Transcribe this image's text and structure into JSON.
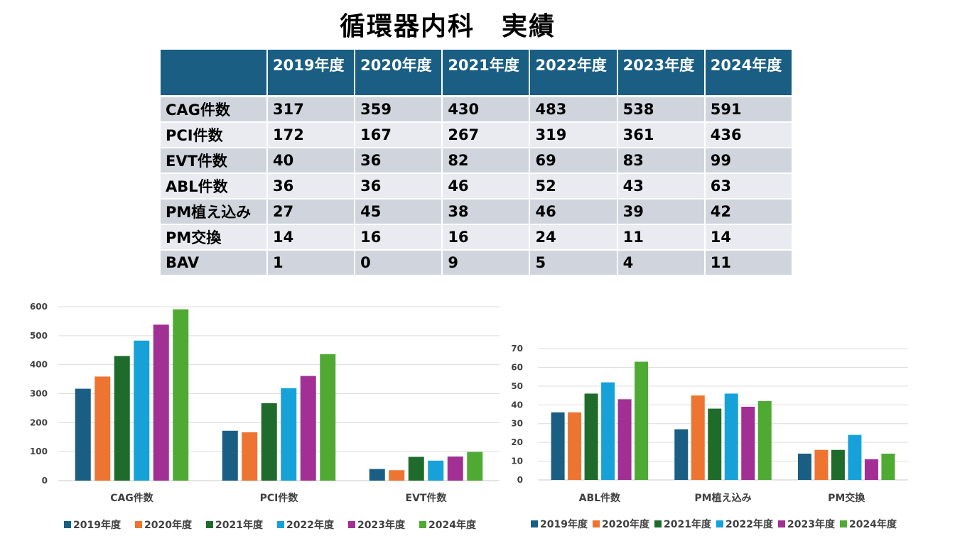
{
  "title": "循環器内科　実績",
  "colors": [
    "#1a5e83",
    "#ed7431",
    "#1e6b2c",
    "#16a2d8",
    "#a12f94",
    "#4faa33"
  ],
  "table": {
    "corner": "",
    "headers": [
      "2019年度",
      "2020年度",
      "2021年度",
      "2022年度",
      "2023年度",
      "2024年度"
    ],
    "rows": [
      {
        "label": "CAG件数",
        "values": [
          "317",
          "359",
          "430",
          "483",
          "538",
          "591"
        ]
      },
      {
        "label": "PCI件数",
        "values": [
          "172",
          "167",
          "267",
          "319",
          "361",
          "436"
        ]
      },
      {
        "label": "EVT件数",
        "values": [
          "40",
          "36",
          "82",
          "69",
          "83",
          "99"
        ]
      },
      {
        "label": "ABL件数",
        "values": [
          "36",
          "36",
          "46",
          "52",
          "43",
          "63"
        ]
      },
      {
        "label": "PM植え込み",
        "values": [
          "27",
          "45",
          "38",
          "46",
          "39",
          "42"
        ]
      },
      {
        "label": "PM交換",
        "values": [
          "14",
          "16",
          "16",
          "24",
          "11",
          "14"
        ]
      },
      {
        "label": "BAV",
        "values": [
          "1",
          "0",
          "9",
          "5",
          "4",
          "11"
        ]
      }
    ]
  },
  "chart_data": [
    {
      "type": "bar",
      "title": "",
      "xlabel": "",
      "ylabel": "",
      "categories": [
        "CAG件数",
        "PCI件数",
        "EVT件数"
      ],
      "ylim": [
        0,
        600
      ],
      "yticks": [
        0,
        100,
        200,
        300,
        400,
        500,
        600
      ],
      "grid": true,
      "legend": "bottom",
      "series": [
        {
          "name": "2019年度",
          "values": [
            317,
            172,
            40
          ]
        },
        {
          "name": "2020年度",
          "values": [
            359,
            167,
            36
          ]
        },
        {
          "name": "2021年度",
          "values": [
            430,
            267,
            82
          ]
        },
        {
          "name": "2022年度",
          "values": [
            483,
            319,
            69
          ]
        },
        {
          "name": "2023年度",
          "values": [
            538,
            361,
            83
          ]
        },
        {
          "name": "2024年度",
          "values": [
            591,
            436,
            99
          ]
        }
      ]
    },
    {
      "type": "bar",
      "title": "",
      "xlabel": "",
      "ylabel": "",
      "categories": [
        "ABL件数",
        "PM植え込み",
        "PM交換"
      ],
      "ylim": [
        0,
        70
      ],
      "yticks": [
        0,
        10,
        20,
        30,
        40,
        50,
        60,
        70
      ],
      "grid": true,
      "legend": "bottom",
      "series": [
        {
          "name": "2019年度",
          "values": [
            36,
            27,
            14
          ]
        },
        {
          "name": "2020年度",
          "values": [
            36,
            45,
            16
          ]
        },
        {
          "name": "2021年度",
          "values": [
            46,
            38,
            16
          ]
        },
        {
          "name": "2022年度",
          "values": [
            52,
            46,
            24
          ]
        },
        {
          "name": "2023年度",
          "values": [
            43,
            39,
            11
          ]
        },
        {
          "name": "2024年度",
          "values": [
            63,
            42,
            14
          ]
        }
      ]
    }
  ]
}
